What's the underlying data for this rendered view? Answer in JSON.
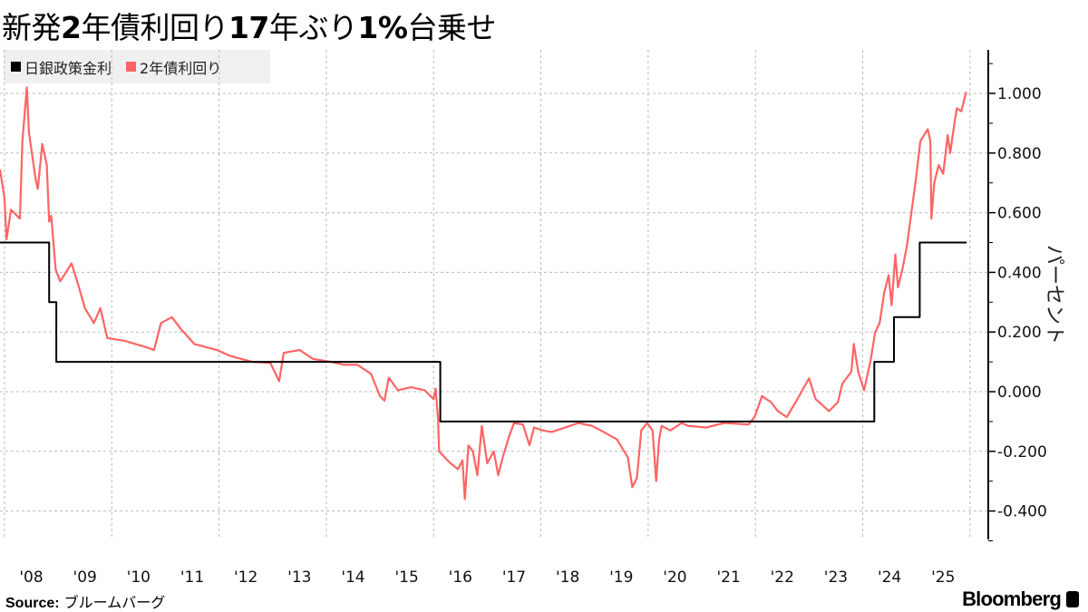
{
  "chart_data": {
    "type": "line",
    "title": "新発2年債利回り17年ぶり1%台乗せ",
    "ylabel": "パーセント",
    "xlabel": "",
    "ylim": [
      -0.5,
      1.15
    ],
    "xlim": [
      "2007-12-01",
      "2025-12-20"
    ],
    "y_ticks": [
      -0.4,
      -0.2,
      0.0,
      0.2,
      0.4,
      0.6,
      0.8,
      1.0
    ],
    "y_tick_labels": [
      "-0.400",
      "-0.200",
      "0.000",
      "0.200",
      "0.400",
      "0.600",
      "0.800",
      "1.000"
    ],
    "x_tick_labels": [
      "'08",
      "'09",
      "'10",
      "'11",
      "'12",
      "'13",
      "'14",
      "'15",
      "'16",
      "'17",
      "'18",
      "'19",
      "'20",
      "'21",
      "'22",
      "'23",
      "'24",
      "'25"
    ],
    "x_tick_years": [
      2008,
      2009,
      2010,
      2011,
      2012,
      2013,
      2014,
      2015,
      2016,
      2017,
      2018,
      2019,
      2020,
      2021,
      2022,
      2023,
      2024,
      2025
    ],
    "grid": true,
    "y_axis_side": "right",
    "legend_placement": "top-left",
    "series": [
      {
        "name": "日銀政策金利",
        "color": "#000000",
        "step": true,
        "points": [
          [
            "2007-12-01",
            0.5
          ],
          [
            "2008-10-31",
            0.3
          ],
          [
            "2008-12-19",
            0.1
          ],
          [
            "2016-02-16",
            -0.1
          ],
          [
            "2024-03-19",
            0.1
          ],
          [
            "2024-07-31",
            0.25
          ],
          [
            "2025-01-24",
            0.5
          ],
          [
            "2025-12-08",
            0.5
          ]
        ]
      },
      {
        "name": "2年債利回り",
        "color": "#ff6464",
        "step": false,
        "points": [
          [
            "2007-12-01",
            0.745
          ],
          [
            "2008-01-01",
            0.65
          ],
          [
            "2008-01-15",
            0.51
          ],
          [
            "2008-02-15",
            0.61
          ],
          [
            "2008-04-15",
            0.58
          ],
          [
            "2008-05-01",
            0.84
          ],
          [
            "2008-06-01",
            1.02
          ],
          [
            "2008-06-15",
            0.87
          ],
          [
            "2008-08-01",
            0.71
          ],
          [
            "2008-08-15",
            0.68
          ],
          [
            "2008-09-15",
            0.83
          ],
          [
            "2008-10-15",
            0.76
          ],
          [
            "2008-11-01",
            0.57
          ],
          [
            "2008-11-15",
            0.59
          ],
          [
            "2008-12-15",
            0.41
          ],
          [
            "2009-01-15",
            0.37
          ],
          [
            "2009-04-01",
            0.43
          ],
          [
            "2009-05-15",
            0.36
          ],
          [
            "2009-07-01",
            0.28
          ],
          [
            "2009-09-01",
            0.23
          ],
          [
            "2009-10-15",
            0.28
          ],
          [
            "2009-12-01",
            0.18
          ],
          [
            "2010-04-01",
            0.17
          ],
          [
            "2010-08-15",
            0.15
          ],
          [
            "2010-10-15",
            0.14
          ],
          [
            "2010-12-01",
            0.23
          ],
          [
            "2011-02-15",
            0.25
          ],
          [
            "2011-04-15",
            0.21
          ],
          [
            "2011-07-15",
            0.16
          ],
          [
            "2011-12-15",
            0.14
          ],
          [
            "2012-03-15",
            0.12
          ],
          [
            "2012-08-15",
            0.1
          ],
          [
            "2012-12-15",
            0.097
          ],
          [
            "2013-02-15",
            0.035
          ],
          [
            "2013-03-15",
            0.13
          ],
          [
            "2013-07-01",
            0.14
          ],
          [
            "2013-10-01",
            0.11
          ],
          [
            "2014-02-01",
            0.1
          ],
          [
            "2014-05-01",
            0.09
          ],
          [
            "2014-08-01",
            0.09
          ],
          [
            "2014-11-01",
            0.06
          ],
          [
            "2015-01-01",
            -0.015
          ],
          [
            "2015-02-01",
            -0.03
          ],
          [
            "2015-03-01",
            0.047
          ],
          [
            "2015-05-01",
            0.005
          ],
          [
            "2015-08-01",
            0.015
          ],
          [
            "2015-11-01",
            0.005
          ],
          [
            "2016-01-01",
            -0.025
          ],
          [
            "2016-01-15",
            0.01
          ],
          [
            "2016-02-01",
            -0.095
          ],
          [
            "2016-02-08",
            -0.2
          ],
          [
            "2016-03-15",
            -0.22
          ],
          [
            "2016-04-25",
            -0.24
          ],
          [
            "2016-06-15",
            -0.26
          ],
          [
            "2016-07-15",
            -0.23
          ],
          [
            "2016-08-01",
            -0.36
          ],
          [
            "2016-08-25",
            -0.18
          ],
          [
            "2016-09-25",
            -0.2
          ],
          [
            "2016-10-25",
            -0.28
          ],
          [
            "2016-11-25",
            -0.115
          ],
          [
            "2017-01-01",
            -0.24
          ],
          [
            "2017-02-15",
            -0.2
          ],
          [
            "2017-03-15",
            -0.28
          ],
          [
            "2017-04-15",
            -0.22
          ],
          [
            "2017-06-01",
            -0.145
          ],
          [
            "2017-07-01",
            -0.105
          ],
          [
            "2017-09-01",
            -0.11
          ],
          [
            "2017-10-15",
            -0.18
          ],
          [
            "2017-11-15",
            -0.12
          ],
          [
            "2018-01-15",
            -0.13
          ],
          [
            "2018-03-15",
            -0.135
          ],
          [
            "2018-07-15",
            -0.115
          ],
          [
            "2018-09-15",
            -0.105
          ],
          [
            "2018-12-15",
            -0.115
          ],
          [
            "2019-02-15",
            -0.13
          ],
          [
            "2019-06-01",
            -0.16
          ],
          [
            "2019-08-15",
            -0.22
          ],
          [
            "2019-09-15",
            -0.32
          ],
          [
            "2019-10-15",
            -0.29
          ],
          [
            "2019-11-15",
            -0.13
          ],
          [
            "2019-12-25",
            -0.105
          ],
          [
            "2020-02-01",
            -0.13
          ],
          [
            "2020-02-25",
            -0.3
          ],
          [
            "2020-03-15",
            -0.16
          ],
          [
            "2020-04-01",
            -0.115
          ],
          [
            "2020-06-01",
            -0.13
          ],
          [
            "2020-08-15",
            -0.105
          ],
          [
            "2020-10-01",
            -0.115
          ],
          [
            "2021-02-01",
            -0.12
          ],
          [
            "2021-06-01",
            -0.105
          ],
          [
            "2021-11-15",
            -0.11
          ],
          [
            "2021-12-25",
            -0.085
          ],
          [
            "2022-02-15",
            -0.015
          ],
          [
            "2022-04-15",
            -0.035
          ],
          [
            "2022-06-01",
            -0.065
          ],
          [
            "2022-08-01",
            -0.085
          ],
          [
            "2022-10-01",
            -0.035
          ],
          [
            "2023-01-01",
            0.045
          ],
          [
            "2023-02-15",
            -0.025
          ],
          [
            "2023-05-15",
            -0.065
          ],
          [
            "2023-07-15",
            -0.035
          ],
          [
            "2023-08-15",
            0.027
          ],
          [
            "2023-10-15",
            0.067
          ],
          [
            "2023-11-01",
            0.16
          ],
          [
            "2023-12-01",
            0.067
          ],
          [
            "2024-01-10",
            0.005
          ],
          [
            "2024-02-25",
            0.106
          ],
          [
            "2024-03-25",
            0.2
          ],
          [
            "2024-04-25",
            0.23
          ],
          [
            "2024-05-25",
            0.33
          ],
          [
            "2024-06-25",
            0.39
          ],
          [
            "2024-07-15",
            0.29
          ],
          [
            "2024-08-10",
            0.46
          ],
          [
            "2024-08-28",
            0.35
          ],
          [
            "2024-09-28",
            0.41
          ],
          [
            "2024-10-28",
            0.49
          ],
          [
            "2024-11-28",
            0.6
          ],
          [
            "2024-12-28",
            0.71
          ],
          [
            "2025-01-28",
            0.84
          ],
          [
            "2025-03-18",
            0.88
          ],
          [
            "2025-04-05",
            0.84
          ],
          [
            "2025-04-12",
            0.58
          ],
          [
            "2025-05-01",
            0.7
          ],
          [
            "2025-06-01",
            0.76
          ],
          [
            "2025-07-01",
            0.73
          ],
          [
            "2025-08-01",
            0.86
          ],
          [
            "2025-08-18",
            0.8
          ],
          [
            "2025-09-20",
            0.91
          ],
          [
            "2025-10-03",
            0.95
          ],
          [
            "2025-11-03",
            0.94
          ],
          [
            "2025-12-03",
            1.0
          ],
          [
            "2025-12-08",
            1.005
          ]
        ]
      }
    ]
  },
  "legend": {
    "items": [
      {
        "label": "日銀政策金利",
        "color": "#000000"
      },
      {
        "label": "2年債利回り",
        "color": "#ff6464"
      }
    ]
  },
  "footer": {
    "source_label": "Source:",
    "source_value": "ブルームバーグ",
    "brand": "Bloomberg"
  }
}
